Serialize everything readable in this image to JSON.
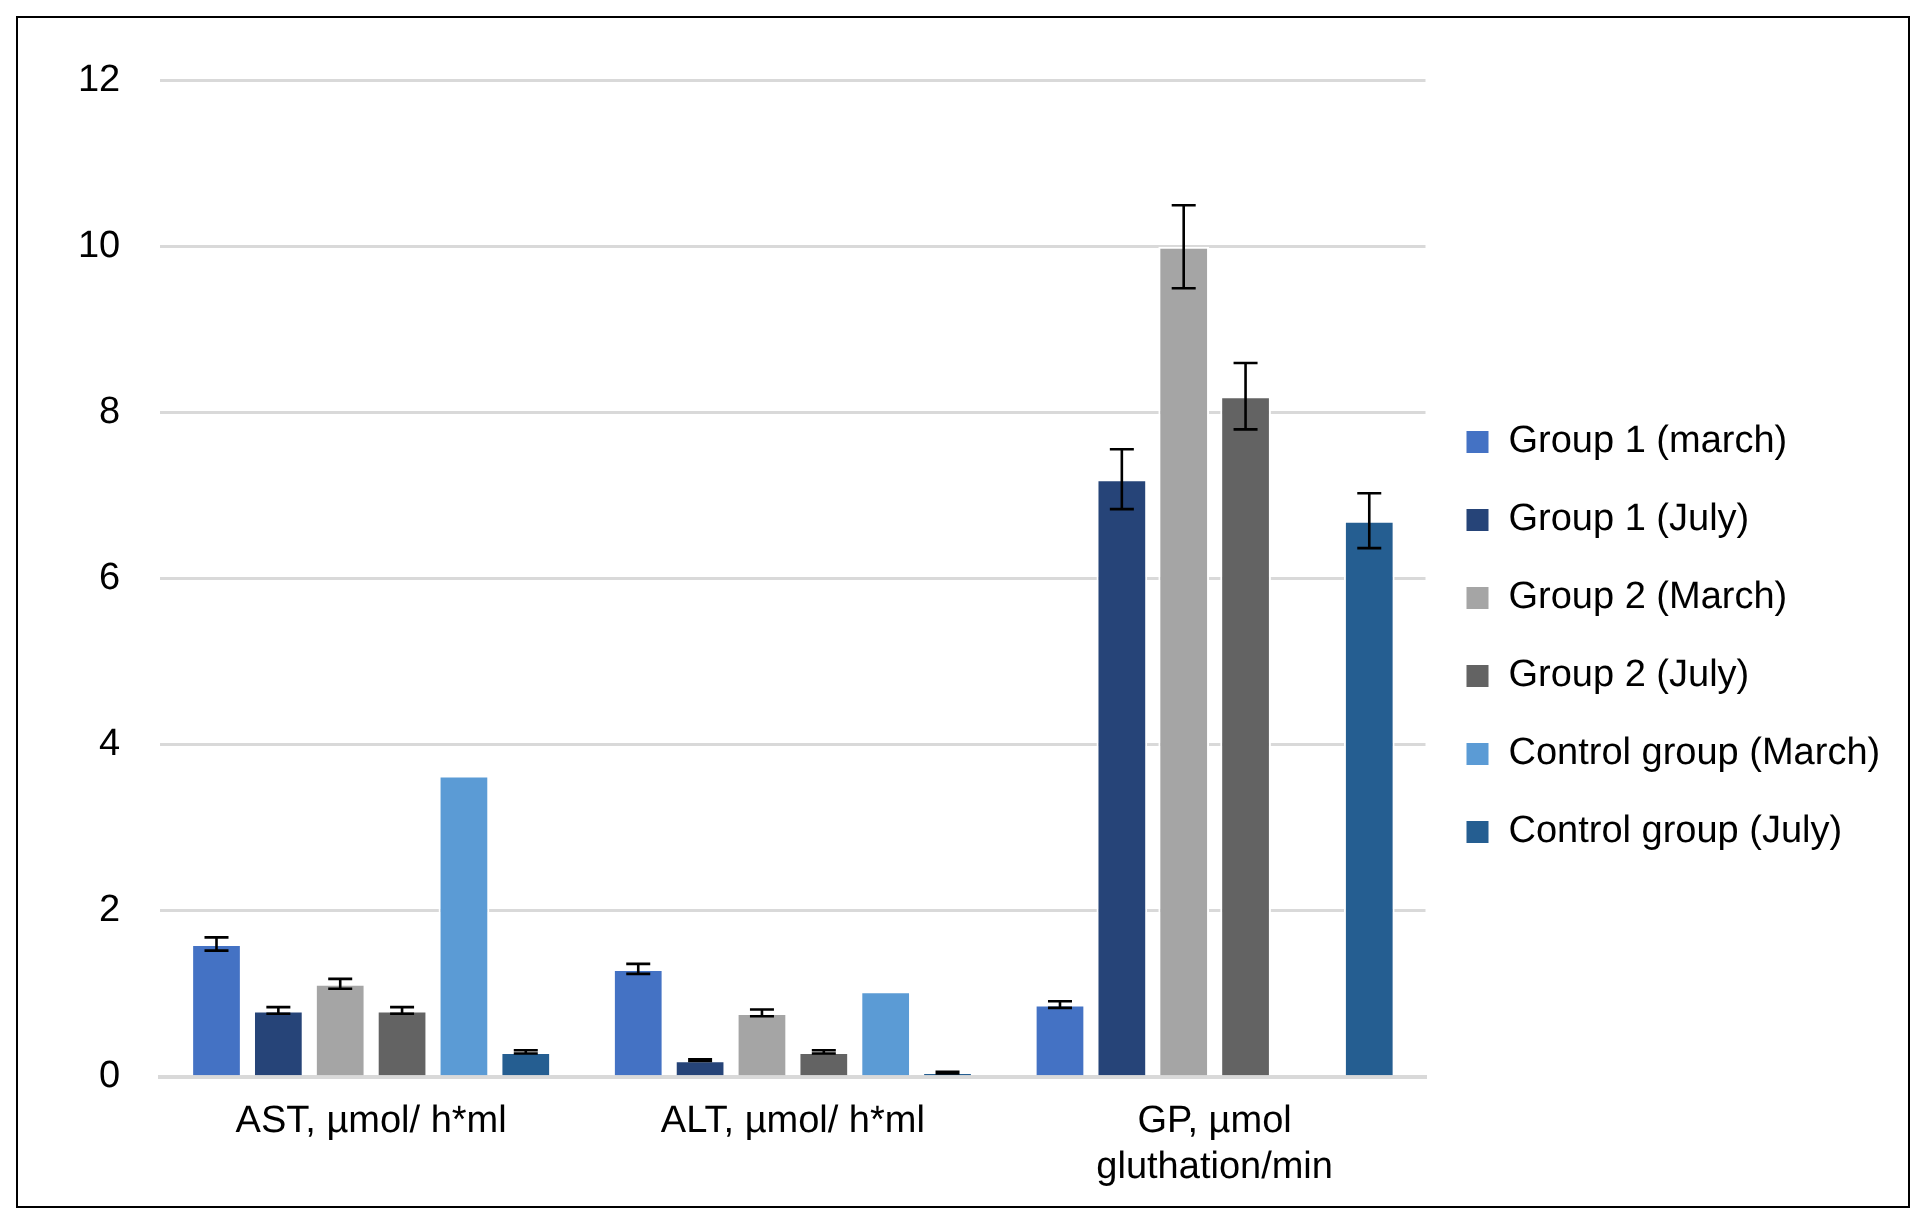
{
  "chart_data": {
    "type": "bar",
    "categories": [
      "AST, µmol/ h*ml",
      "ALT, µmol/ h*ml",
      "GP, µmol gluthation/min"
    ],
    "series": [
      {
        "name": "Group 1 (march)",
        "color": "#4472c4",
        "values": [
          1.6,
          1.3,
          0.87
        ],
        "errors": [
          0.08,
          0.06,
          0.04
        ]
      },
      {
        "name": "Group 1 (July)",
        "color": "#264478",
        "values": [
          0.8,
          0.2,
          7.2
        ],
        "errors": [
          0.04,
          0.01,
          0.36
        ]
      },
      {
        "name": "Group 2 (March)",
        "color": "#a5a5a5",
        "values": [
          1.12,
          0.77,
          10.0
        ],
        "errors": [
          0.06,
          0.04,
          0.5
        ]
      },
      {
        "name": "Group 2 (July)",
        "color": "#636363",
        "values": [
          0.8,
          0.3,
          8.2
        ],
        "errors": [
          0.04,
          0.02,
          0.4
        ]
      },
      {
        "name": "Control group (March)",
        "color": "#5b9bd5",
        "values": [
          3.63,
          1.03,
          null
        ]
      },
      {
        "name": "Control group (July)",
        "color": "#255e91",
        "values": [
          0.3,
          0.05,
          6.7
        ],
        "errors": [
          0.02,
          0.01,
          0.33
        ]
      }
    ],
    "ylim": [
      0,
      12
    ],
    "yticks": [
      0,
      2,
      4,
      6,
      8,
      10,
      12
    ],
    "grid": "y",
    "legend": "right"
  }
}
